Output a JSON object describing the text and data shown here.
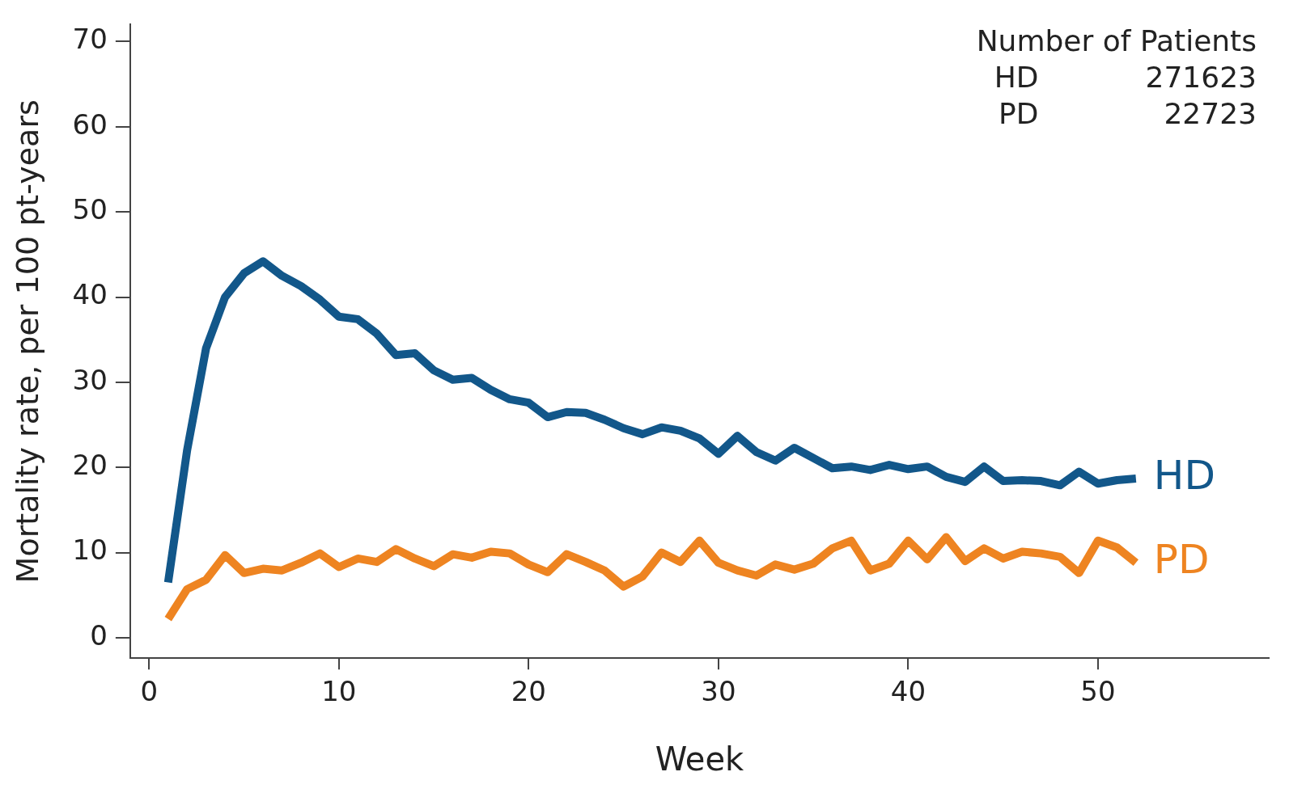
{
  "chart_data": {
    "type": "line",
    "xlabel": "Week",
    "ylabel": "Mortality rate, per 100 pt-years",
    "x": [
      1,
      2,
      3,
      4,
      5,
      6,
      7,
      8,
      9,
      10,
      11,
      12,
      13,
      14,
      15,
      16,
      17,
      18,
      19,
      20,
      21,
      22,
      23,
      24,
      25,
      26,
      27,
      28,
      29,
      30,
      31,
      32,
      33,
      34,
      35,
      36,
      37,
      38,
      39,
      40,
      41,
      42,
      43,
      44,
      45,
      46,
      47,
      48,
      49,
      50,
      51,
      52
    ],
    "series": [
      {
        "name": "HD",
        "color": "#12578a",
        "values": [
          6.5,
          22,
          34,
          40,
          42.8,
          44.2,
          42.5,
          41.3,
          39.7,
          37.7,
          37.4,
          35.7,
          33.2,
          33.4,
          31.4,
          30.3,
          30.5,
          29.1,
          28,
          27.6,
          25.9,
          26.5,
          26.4,
          25.6,
          24.6,
          23.9,
          24.7,
          24.3,
          23.4,
          21.6,
          23.7,
          21.8,
          20.8,
          22.3,
          21.1,
          19.9,
          20.1,
          19.7,
          20.3,
          19.8,
          20.1,
          18.9,
          18.3,
          20.1,
          18.4,
          18.5,
          18.4,
          17.9,
          19.5,
          18.1,
          18.5,
          18.7
        ]
      },
      {
        "name": "PD",
        "color": "#ee8421",
        "values": [
          2.2,
          5.7,
          6.8,
          9.7,
          7.6,
          8.1,
          7.9,
          8.8,
          9.9,
          8.3,
          9.3,
          8.9,
          10.4,
          9.3,
          8.4,
          9.8,
          9.4,
          10.1,
          9.9,
          8.6,
          7.7,
          9.8,
          8.9,
          7.9,
          6,
          7.2,
          10,
          8.9,
          11.4,
          8.8,
          7.9,
          7.3,
          8.6,
          8,
          8.7,
          10.5,
          11.4,
          7.9,
          8.7,
          11.4,
          9.2,
          11.8,
          9,
          10.5,
          9.3,
          10.1,
          9.9,
          9.5,
          7.6,
          11.4,
          10.6,
          8.8
        ]
      }
    ],
    "xlim": [
      -1,
      59
    ],
    "xticks": [
      0,
      10,
      20,
      30,
      40,
      50
    ],
    "ylim": [
      -2.4,
      72
    ],
    "yticks": [
      0,
      10,
      20,
      30,
      40,
      50,
      60,
      70
    ],
    "grid": false,
    "legend": false,
    "marker": "none",
    "line_style": "solid",
    "annotations": [
      "Number of Patients",
      "HD",
      "271623",
      "PD",
      "22723"
    ]
  }
}
